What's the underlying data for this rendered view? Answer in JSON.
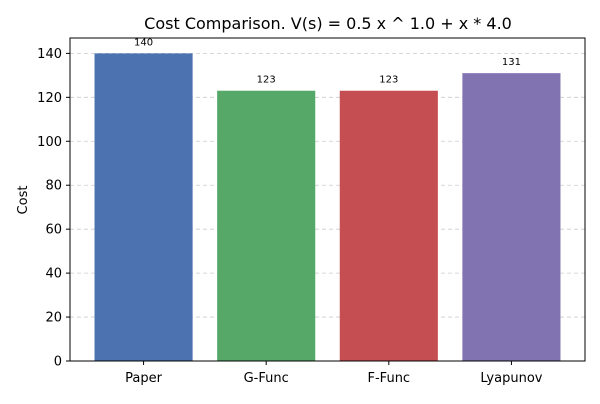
{
  "chart_data": {
    "type": "bar",
    "title": "Cost Comparison. V(s) = 0.5 x ^ 1.0 + x * 4.0",
    "xlabel": "",
    "ylabel": "Cost",
    "categories": [
      "Paper",
      "G-Func",
      "F-Func",
      "Lyapunov"
    ],
    "values": [
      140,
      123,
      123,
      131
    ],
    "data_labels": [
      "140",
      "123",
      "123",
      "131"
    ],
    "colors": [
      "#4c72b0",
      "#55a868",
      "#c44e52",
      "#8172b2"
    ],
    "ylim": [
      0,
      147
    ],
    "yticks": [
      0,
      20,
      40,
      60,
      80,
      100,
      120,
      140
    ],
    "ytick_labels": [
      "0",
      "20",
      "40",
      "60",
      "80",
      "100",
      "120",
      "140"
    ],
    "grid": true,
    "grid_axis": "y",
    "grid_style": "dashed",
    "legend": "none"
  }
}
